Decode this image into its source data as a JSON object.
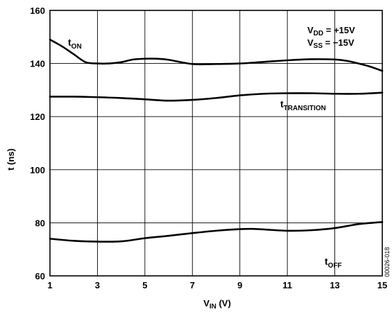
{
  "chart_data": {
    "type": "line",
    "xlabel": {
      "main": "V",
      "sub": "IN",
      "suffix": " (V)"
    },
    "ylabel": "t (ns)",
    "xlim": [
      1,
      15
    ],
    "ylim": [
      60,
      160
    ],
    "xticks": [
      1,
      3,
      5,
      7,
      9,
      11,
      13,
      15
    ],
    "yticks": [
      60,
      80,
      100,
      120,
      140,
      160
    ],
    "grid": true,
    "conditions": [
      {
        "main": "V",
        "sub": "DD",
        "value": " = +15V"
      },
      {
        "main": "V",
        "sub": "SS",
        "value": " = −15V"
      }
    ],
    "series": [
      {
        "name": {
          "main": "t",
          "sub": "ON"
        },
        "x": [
          1,
          1.5,
          2,
          2.5,
          3,
          3.5,
          4,
          4.5,
          5,
          5.5,
          6,
          7,
          8,
          9,
          10,
          11,
          12,
          13,
          13.5,
          14,
          14.5,
          15
        ],
        "y": [
          149,
          146.5,
          143.5,
          140.5,
          140,
          140,
          140.5,
          141.5,
          141.8,
          141.8,
          141.4,
          139.8,
          139.8,
          140,
          140.6,
          141.2,
          141.6,
          141.5,
          141,
          140,
          138.8,
          137.2
        ]
      },
      {
        "name": {
          "main": "t",
          "sub": "TRANSITION"
        },
        "x": [
          1,
          2,
          3,
          4,
          5,
          6,
          7,
          8,
          9,
          10,
          11,
          12,
          13,
          14,
          15
        ],
        "y": [
          127.5,
          127.5,
          127.3,
          127,
          126.5,
          126,
          126.3,
          127,
          128,
          128.6,
          128.8,
          128.8,
          128.6,
          128.6,
          129
        ]
      },
      {
        "name": {
          "main": "t",
          "sub": "OFF"
        },
        "x": [
          1,
          2,
          3,
          4,
          5,
          6,
          7,
          8,
          9,
          9.5,
          10,
          11,
          12,
          13,
          14,
          15
        ],
        "y": [
          74,
          73.2,
          72.9,
          73,
          74.2,
          75.1,
          76.1,
          77,
          77.6,
          77.7,
          77.5,
          77,
          77.2,
          78,
          79.5,
          80.3
        ]
      }
    ],
    "code": "00026-018"
  }
}
